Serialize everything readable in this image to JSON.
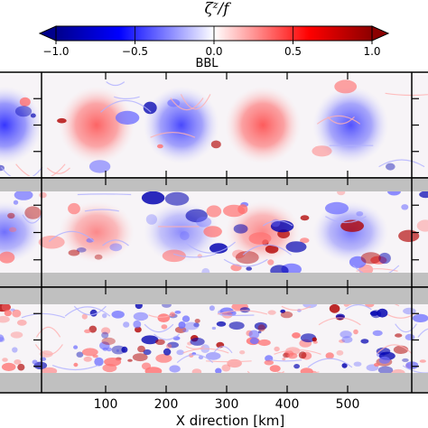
{
  "chart_data": {
    "type": "heatmap",
    "colorbar": {
      "label": "ζ^z/f",
      "ticks": [
        "−1.0",
        "−0.5",
        "0.0",
        "0.5",
        "1.0"
      ],
      "tick_values": [
        -1.0,
        -0.5,
        0.0,
        0.5,
        1.0
      ],
      "range": [
        -1.0,
        1.0
      ],
      "colormap": "seismic",
      "colors": {
        "negative": "#00008c",
        "zero": "#ffffff",
        "positive": "#8c0000"
      },
      "extend": "both"
    },
    "panels": [
      {
        "title": "BBL",
        "eddies": [
          {
            "x": 0,
            "sign": -1,
            "amp": 0.8
          },
          {
            "x": 85,
            "sign": 1,
            "amp": 0.55
          },
          {
            "x": 225,
            "sign": -1,
            "amp": 0.65
          },
          {
            "x": 360,
            "sign": 1,
            "amp": 0.6
          },
          {
            "x": 505,
            "sign": -1,
            "amp": 0.6
          }
        ]
      },
      {
        "title": "",
        "eddies": [
          {
            "x": 0,
            "sign": -1,
            "amp": 0.45
          },
          {
            "x": 85,
            "sign": 1,
            "amp": 0.35
          },
          {
            "x": 225,
            "sign": -1,
            "amp": 0.3
          },
          {
            "x": 360,
            "sign": 1,
            "amp": 0.35
          },
          {
            "x": 505,
            "sign": -1,
            "amp": 0.4
          }
        ]
      },
      {
        "title": "",
        "eddies": []
      }
    ],
    "x_axis": {
      "label": "X direction [km]",
      "ticks": [
        100,
        200,
        300,
        400,
        500
      ],
      "range": [
        0,
        600
      ]
    }
  }
}
